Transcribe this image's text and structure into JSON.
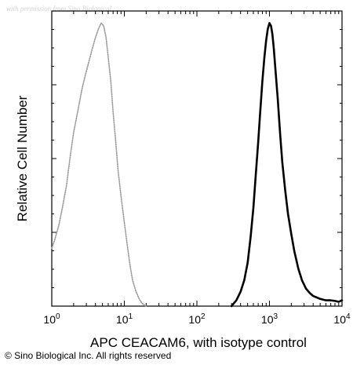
{
  "watermark": "with permission from Sino Biological",
  "chart_data": {
    "type": "line",
    "x_scale": "log",
    "xlim": [
      1,
      10000
    ],
    "ylim": [
      0,
      1
    ],
    "xlabel": "APC CEACAM6, with isotype control",
    "ylabel": "Relative Cell Number",
    "x_ticks": [
      {
        "base": "10",
        "exp": "0",
        "value": 1
      },
      {
        "base": "10",
        "exp": "1",
        "value": 10
      },
      {
        "base": "10",
        "exp": "2",
        "value": 100
      },
      {
        "base": "10",
        "exp": "3",
        "value": 1000
      },
      {
        "base": "10",
        "exp": "4",
        "value": 10000
      }
    ],
    "grid": false,
    "series": [
      {
        "style": "dotted",
        "color": "#9a9a9a",
        "x": [
          1.0,
          1.1,
          1.25,
          1.4,
          1.6,
          1.8,
          2.0,
          2.3,
          2.6,
          2.9,
          3.2,
          3.6,
          4.0,
          4.4,
          4.8,
          5.2,
          5.6,
          6.0,
          6.5,
          7.0,
          7.6,
          8.2,
          9.0,
          10,
          11,
          12,
          13,
          14.5,
          16,
          17.5,
          19,
          20
        ],
        "y": [
          0.2,
          0.23,
          0.28,
          0.34,
          0.42,
          0.52,
          0.6,
          0.68,
          0.75,
          0.8,
          0.84,
          0.89,
          0.93,
          0.96,
          0.98,
          0.97,
          0.93,
          0.86,
          0.78,
          0.67,
          0.57,
          0.47,
          0.38,
          0.29,
          0.21,
          0.14,
          0.09,
          0.05,
          0.025,
          0.01,
          0.003,
          0.0
        ]
      },
      {
        "style": "solid",
        "color": "#000000",
        "x": [
          300,
          350,
          400,
          450,
          500,
          550,
          600,
          650,
          700,
          750,
          800,
          850,
          900,
          950,
          1000,
          1050,
          1100,
          1150,
          1200,
          1300,
          1400,
          1500,
          1650,
          1800,
          2000,
          2200,
          2500,
          2800,
          3200,
          3600,
          4000,
          4500,
          5000,
          6000,
          7000,
          8000,
          9000,
          10000
        ],
        "y": [
          0.0,
          0.02,
          0.05,
          0.09,
          0.15,
          0.24,
          0.34,
          0.46,
          0.57,
          0.68,
          0.78,
          0.86,
          0.92,
          0.96,
          0.98,
          0.97,
          0.94,
          0.89,
          0.83,
          0.72,
          0.6,
          0.5,
          0.4,
          0.32,
          0.25,
          0.19,
          0.13,
          0.09,
          0.06,
          0.045,
          0.035,
          0.03,
          0.025,
          0.02,
          0.02,
          0.018,
          0.015,
          0.02
        ]
      }
    ]
  },
  "copyright": "© Sino Biological Inc. All rights reserved"
}
